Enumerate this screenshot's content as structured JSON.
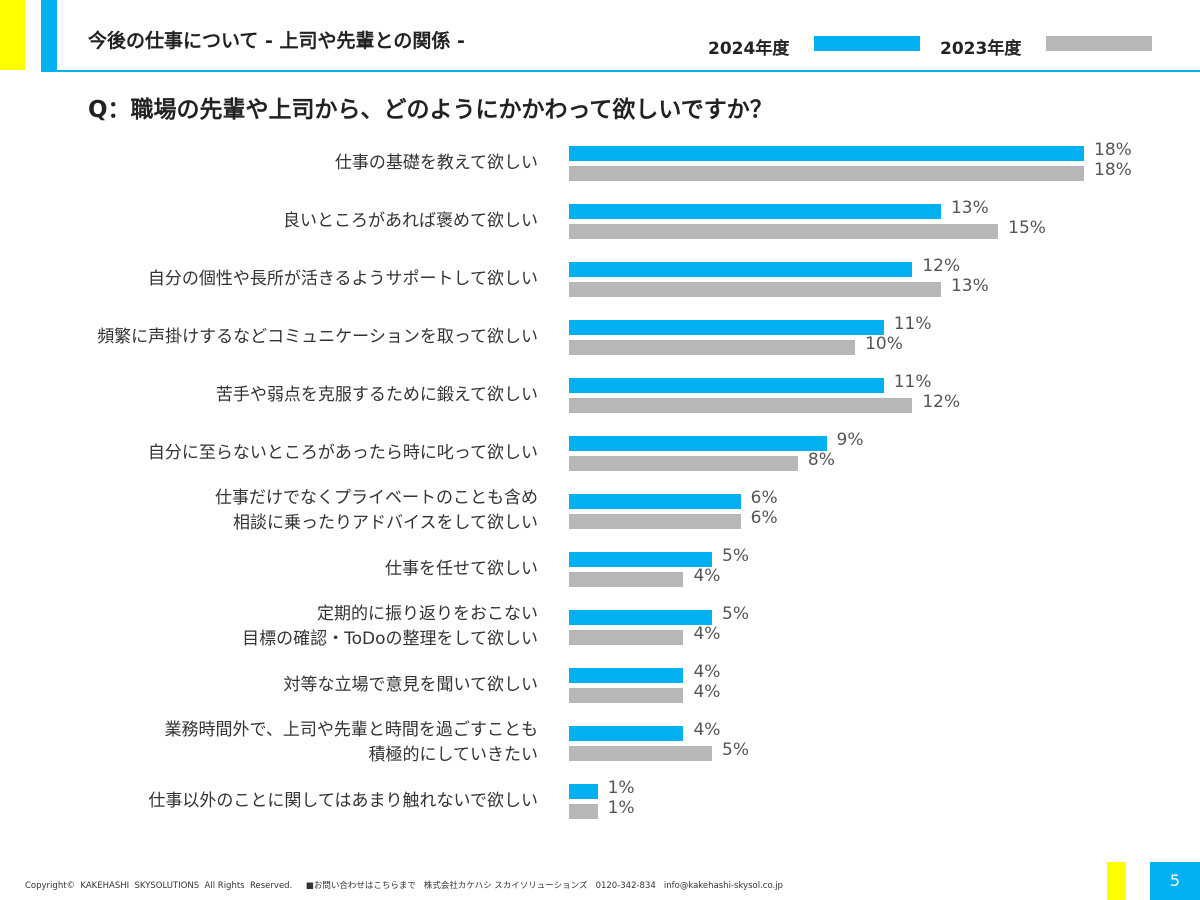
{
  "header": {
    "title": "今後の仕事について - 上司や先輩との関係 -"
  },
  "question": "Q：職場の先輩や上司から、どのようにかかわって欲しいですか？",
  "footer": {
    "copyright": "Copyright©  KAKEHASHI  SKYSOLUTIONS  All Rights  Reserved.",
    "contact": "■お問い合わせはこちらまで   株式会社カケハシ スカイソリューションズ   0120-342-834   info@kakehashi-skysol.co.jp",
    "page": "5"
  },
  "chart_data": {
    "type": "bar",
    "orientation": "horizontal",
    "legend_position": "top-right",
    "grid": false,
    "xlim": [
      0,
      18
    ],
    "categories": [
      "仕事の基礎を教えて欲しい",
      "良いところがあれば褒めて欲しい",
      "自分の個性や長所が活きるようサポートして欲しい",
      "頻繁に声掛けするなどコミュニケーションを取って欲しい",
      "苦手や弱点を克服するために鍛えて欲しい",
      "自分に至らないところがあったら時に叱って欲しい",
      "仕事だけでなくプライベートのことも含め\n相談に乗ったりアドバイスをして欲しい",
      "仕事を任せて欲しい",
      "定期的に振り返りをおこない\n目標の確認・ToDoの整理をして欲しい",
      "対等な立場で意見を聞いて欲しい",
      "業務時間外で、上司や先輩と時間を過ごすことも\n積極的にしていきたい",
      "仕事以外のことに関してはあまり触れないで欲しい"
    ],
    "series": [
      {
        "name": "2024年度",
        "color": "#00b0f0",
        "values": [
          18,
          13,
          12,
          11,
          11,
          9,
          6,
          5,
          5,
          4,
          4,
          1
        ]
      },
      {
        "name": "2023年度",
        "color": "#b7b7b7",
        "values": [
          18,
          15,
          13,
          10,
          12,
          8,
          6,
          4,
          4,
          4,
          5,
          1
        ]
      }
    ],
    "unit": "%"
  }
}
